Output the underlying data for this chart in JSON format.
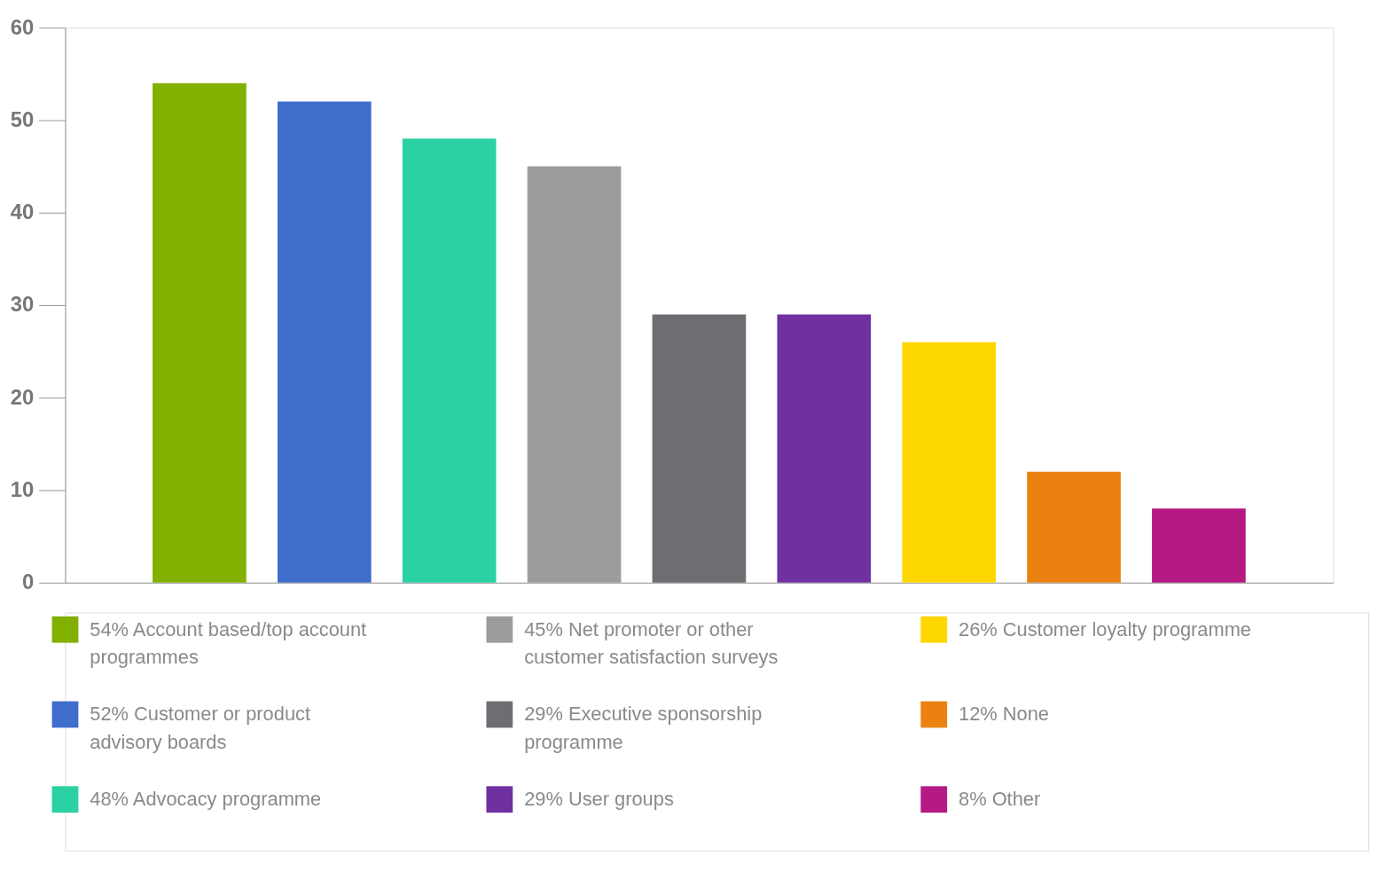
{
  "chart_data": {
    "type": "bar",
    "categories": [
      null,
      null,
      null,
      null,
      null,
      null,
      null,
      null,
      null
    ],
    "series": [
      {
        "name": "54% Account based/top account programmes",
        "color": "#82b000",
        "values": [
          54,
          null,
          null,
          null,
          null,
          null,
          null,
          null,
          null
        ]
      },
      {
        "name": "52% Customer or product advisory boards",
        "color": "#3e6dcc",
        "values": [
          null,
          52,
          null,
          null,
          null,
          null,
          null,
          null,
          null
        ]
      },
      {
        "name": "48% Advocacy programme",
        "color": "#2bd0a3",
        "values": [
          null,
          null,
          48,
          null,
          null,
          null,
          null,
          null,
          null
        ]
      },
      {
        "name": "45% Net promoter or other customer satisfaction surveys",
        "color": "#9c9c9c",
        "values": [
          null,
          null,
          null,
          45,
          null,
          null,
          null,
          null,
          null
        ]
      },
      {
        "name": "29% Executive sponsorship programme",
        "color": "#6e6e72",
        "values": [
          null,
          null,
          null,
          null,
          29,
          null,
          null,
          null,
          null
        ]
      },
      {
        "name": "29% User groups",
        "color": "#7030a0",
        "values": [
          null,
          null,
          null,
          null,
          null,
          29,
          null,
          null,
          null
        ]
      },
      {
        "name": "26% Customer loyalty programme",
        "color": "#fed700",
        "values": [
          null,
          null,
          null,
          null,
          null,
          null,
          26,
          null,
          null
        ]
      },
      {
        "name": "12% None",
        "color": "#eb8111",
        "values": [
          null,
          null,
          null,
          null,
          null,
          null,
          null,
          12,
          null
        ]
      },
      {
        "name": "8% Other",
        "color": "#b51a84",
        "values": [
          null,
          null,
          null,
          null,
          null,
          null,
          null,
          null,
          8
        ]
      }
    ],
    "ylim": [
      0,
      60
    ],
    "yticks": [
      0,
      10,
      20,
      30,
      40,
      50,
      60
    ],
    "grid": false,
    "legend": "bottom",
    "tick_labels": "y"
  }
}
